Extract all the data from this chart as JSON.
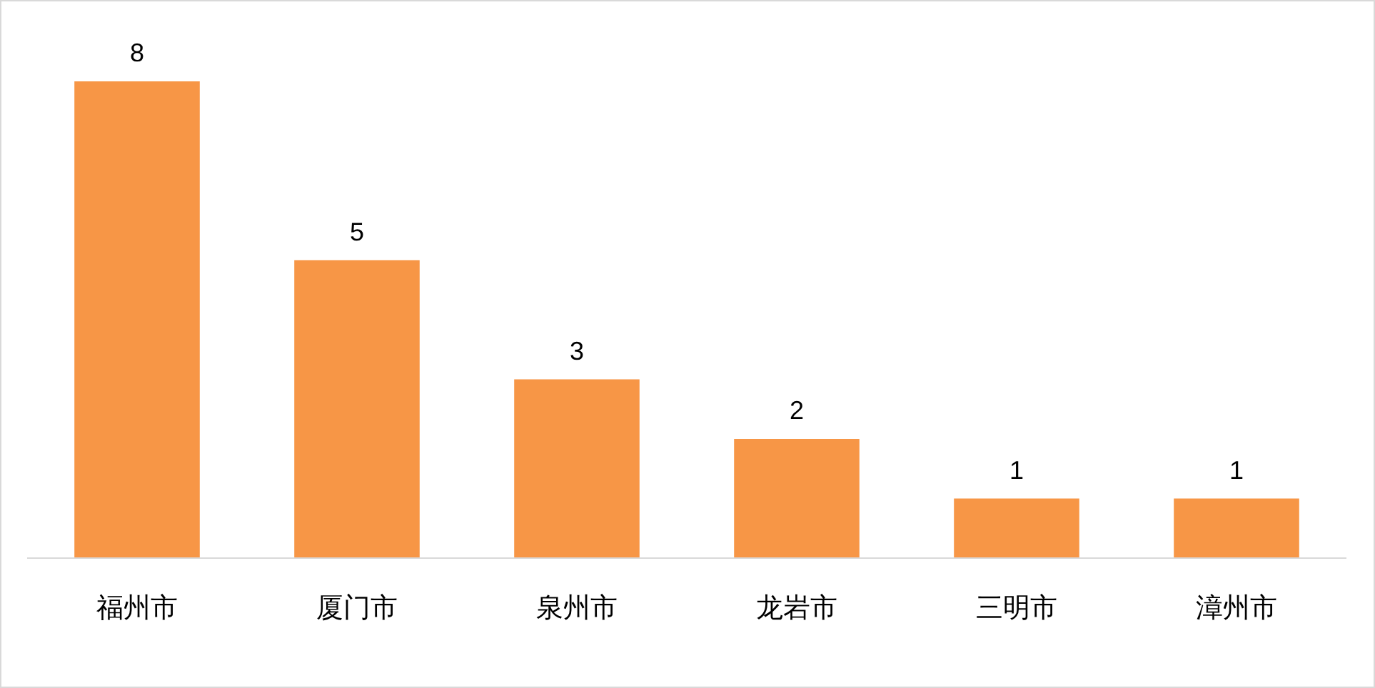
{
  "chart_data": {
    "type": "bar",
    "categories": [
      "福州市",
      "厦门市",
      "泉州市",
      "龙岩市",
      "三明市",
      "漳州市"
    ],
    "values": [
      8,
      5,
      3,
      2,
      1,
      1
    ],
    "color": "#f79646",
    "data_labels": true
  }
}
